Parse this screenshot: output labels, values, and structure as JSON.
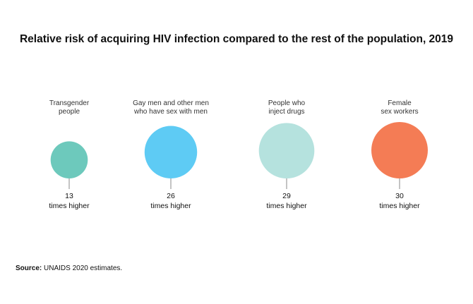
{
  "chart_data": {
    "type": "bubble",
    "title": "Relative risk of acquiring HIV infection compared to the rest of the population, 2019",
    "unit_label": "times higher",
    "categories": [
      [
        "Transgender",
        "people"
      ],
      [
        "Gay men and other men",
        "who have sex with men"
      ],
      [
        "People who",
        "inject drugs"
      ],
      [
        "Female",
        "sex workers"
      ]
    ],
    "values": [
      13,
      26,
      29,
      30
    ],
    "colors": [
      "#6dc9bc",
      "#5ecbf4",
      "#b5e2de",
      "#f47c55"
    ]
  },
  "source": {
    "label": "Source:",
    "text": "UNAIDS 2020 estimates."
  }
}
